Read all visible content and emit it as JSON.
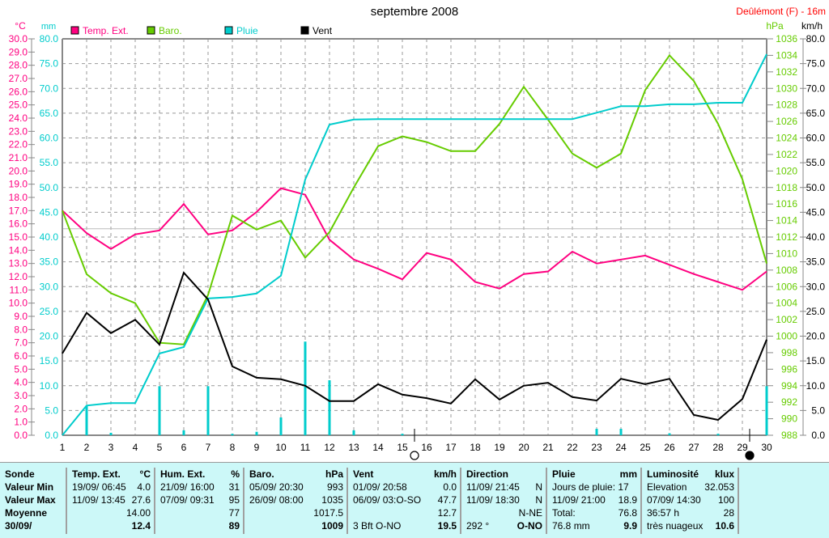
{
  "chart_data": {
    "type": "line",
    "title": "septembre 2008",
    "station": "Deûlémont (F) - 16m",
    "x": [
      1,
      2,
      3,
      4,
      5,
      6,
      7,
      8,
      9,
      10,
      11,
      12,
      13,
      14,
      15,
      16,
      17,
      18,
      19,
      20,
      21,
      22,
      23,
      24,
      25,
      26,
      27,
      28,
      29,
      30
    ],
    "axes": {
      "temp": {
        "unit": "°C",
        "range": [
          0,
          30
        ],
        "step": 1,
        "color": "#ff0080"
      },
      "rain": {
        "unit": "mm",
        "range": [
          0,
          80
        ],
        "step": 5,
        "color": "#00cccc"
      },
      "baro": {
        "unit": "hPa",
        "range": [
          988,
          1036
        ],
        "step": 2,
        "color": "#66cc00"
      },
      "wind": {
        "unit": "km/h",
        "range": [
          0,
          80
        ],
        "step": 5,
        "color": "#000000"
      }
    },
    "legend": [
      {
        "label": "Temp. Ext.",
        "color": "#ff0080"
      },
      {
        "label": "Baro.",
        "color": "#66cc00"
      },
      {
        "label": "Pluie",
        "color": "#00cccc"
      },
      {
        "label": "Vent",
        "color": "#000000"
      }
    ],
    "series": [
      {
        "name": "Temp. Ext.",
        "axis": "temp",
        "color": "#ff0080",
        "values": [
          17.0,
          15.3,
          14.1,
          15.2,
          15.5,
          17.5,
          15.2,
          15.5,
          16.9,
          18.7,
          18.2,
          14.8,
          13.3,
          12.6,
          11.8,
          13.8,
          13.3,
          11.6,
          11.1,
          12.2,
          12.4,
          13.9,
          13.0,
          13.3,
          13.6,
          12.9,
          12.2,
          11.6,
          11.0,
          12.4
        ]
      },
      {
        "name": "Baro.",
        "axis": "baro",
        "color": "#66cc00",
        "values": [
          1015.2,
          1007.5,
          1005.2,
          1004.0,
          999.2,
          999.0,
          1005.0,
          1014.6,
          1012.9,
          1014.0,
          1009.5,
          1012.6,
          1018.0,
          1023.0,
          1024.2,
          1023.5,
          1022.4,
          1022.4,
          1025.7,
          1030.2,
          1026.2,
          1022.1,
          1020.4,
          1022.1,
          1029.8,
          1034.0,
          1030.9,
          1025.7,
          1019.0,
          1008.8
        ]
      },
      {
        "name": "Pluie",
        "axis": "rain",
        "color": "#00cccc",
        "values": [
          0,
          6.0,
          6.5,
          6.5,
          16.5,
          17.8,
          27.6,
          27.9,
          28.6,
          32.2,
          51.6,
          62.7,
          63.7,
          63.8,
          63.8,
          63.8,
          63.8,
          63.8,
          63.8,
          63.8,
          63.8,
          63.8,
          65.1,
          66.4,
          66.4,
          66.8,
          66.8,
          67.1,
          67.1,
          76.9
        ]
      },
      {
        "name": "Vent",
        "axis": "wind",
        "color": "#000000",
        "values": [
          16.5,
          24.7,
          20.6,
          23.3,
          18.3,
          32.8,
          27.4,
          13.9,
          11.6,
          11.3,
          10.0,
          6.9,
          6.9,
          10.3,
          8.2,
          7.5,
          6.4,
          11.3,
          7.2,
          10.0,
          10.6,
          7.7,
          7.0,
          11.4,
          10.3,
          11.4,
          4.1,
          3.1,
          7.3,
          19.3
        ]
      }
    ],
    "daily_rain": {
      "axis": "rain",
      "color": "#00cccc",
      "values": [
        0,
        6.0,
        0.5,
        0,
        9.9,
        1.0,
        9.9,
        0.3,
        0.7,
        3.6,
        18.9,
        11.1,
        1.0,
        0,
        0.3,
        0,
        0,
        0,
        0,
        0,
        0,
        0,
        1.3,
        1.3,
        0,
        0.4,
        0,
        0.3,
        0,
        9.9
      ]
    },
    "moon_phases": [
      {
        "day": 15.5,
        "phase": "full"
      },
      {
        "day": 29.3,
        "phase": "new"
      }
    ],
    "grid": true,
    "legend_position": "top"
  },
  "table": {
    "columns": [
      {
        "header": "Sonde",
        "unit": "",
        "rows": [
          [
            "Valeur Min",
            ""
          ],
          [
            "Valeur Max",
            ""
          ],
          [
            "Moyenne",
            ""
          ],
          [
            "30/09/",
            ""
          ]
        ]
      },
      {
        "header": "Temp. Ext.",
        "unit": "°C",
        "rows": [
          [
            "19/09/  06:45",
            "4.0"
          ],
          [
            "11/09/  13:45",
            "27.6"
          ],
          [
            "",
            "14.00"
          ],
          [
            "",
            "12.4"
          ]
        ]
      },
      {
        "header": "Hum. Ext.",
        "unit": "%",
        "rows": [
          [
            "21/09/  16:00",
            "31"
          ],
          [
            "07/09/  09:31",
            "95"
          ],
          [
            "",
            "77"
          ],
          [
            "",
            "89"
          ]
        ]
      },
      {
        "header": "Baro.",
        "unit": "hPa",
        "rows": [
          [
            "05/09/  20:30",
            "993"
          ],
          [
            "26/09/  08:00",
            "1035"
          ],
          [
            "",
            "1017.5"
          ],
          [
            "",
            "1009"
          ]
        ]
      },
      {
        "header": "Vent",
        "unit": "km/h",
        "rows": [
          [
            "01/09/  20:58",
            "0.0"
          ],
          [
            "06/09/  03:O-SO",
            "47.7"
          ],
          [
            "",
            "12.7"
          ],
          [
            "3 Bft O-NO",
            "19.5"
          ]
        ]
      },
      {
        "header": "Direction",
        "unit": "",
        "rows": [
          [
            "11/09/  21:45",
            "N"
          ],
          [
            "11/09/  18:30",
            "N"
          ],
          [
            "",
            "N-NE"
          ],
          [
            "292 °",
            "O-NO"
          ]
        ]
      },
      {
        "header": "Pluie",
        "unit": "mm",
        "rows": [
          [
            "Jours de pluie: 17",
            ""
          ],
          [
            "11/09/  21:00",
            "18.9"
          ],
          [
            "Total:",
            "76.8"
          ],
          [
            "76.8 mm",
            "9.9"
          ]
        ]
      },
      {
        "header": "Luminosité",
        "unit": "klux",
        "rows": [
          [
            "Elevation",
            "32.053"
          ],
          [
            "07/09/  14:30",
            "100"
          ],
          [
            "36:57 h",
            "28"
          ],
          [
            "très nuageux",
            "10.6"
          ]
        ]
      }
    ]
  }
}
